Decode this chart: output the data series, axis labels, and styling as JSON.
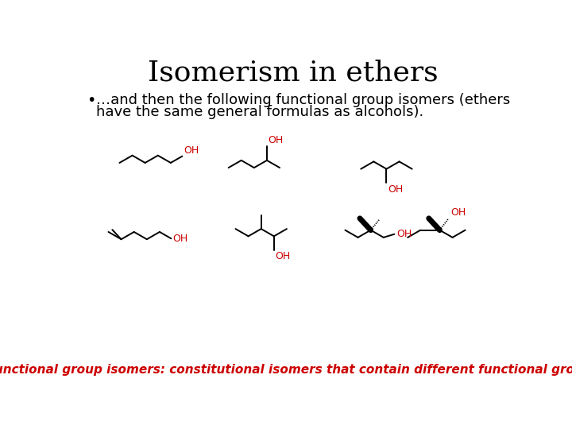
{
  "title": "Isomerism in ethers",
  "title_fontsize": 26,
  "bullet_text_line1": "…and then the following functional group isomers (ethers",
  "bullet_text_line2": "have the same general formulas as alcohols).",
  "bullet_fontsize": 13,
  "footer_text": "Functional group isomers: constitutional isomers that contain different functional groups",
  "footer_fontsize": 11,
  "footer_color": "#cc0000",
  "line_color": "#000000",
  "oh_color": "#cc0000",
  "bg_color": "#ffffff",
  "lw": 1.4
}
